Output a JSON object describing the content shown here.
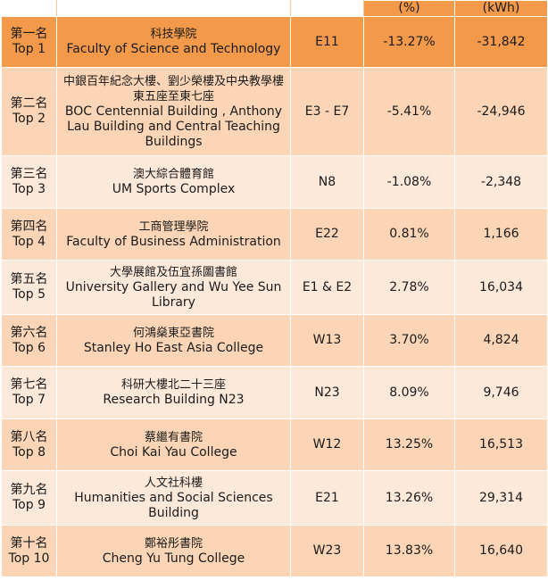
{
  "header": {
    "percent_unit": "(%)",
    "energy_unit": "(kWh)"
  },
  "rows": [
    {
      "rank_cn": "第一名",
      "rank_en": "Top 1",
      "name_cn": "科技學院",
      "name_en": "Faculty of Science and Technology",
      "code": "E11",
      "percent": "-13.27%",
      "kwh": "-31,842"
    },
    {
      "rank_cn": "第二名",
      "rank_en": "Top 2",
      "name_cn": "中銀百年紀念大樓、劉少榮樓及中央教學樓東五座至東七座",
      "name_en": "BOC Centennial Building , Anthony Lau Building and Central Teaching Buildings",
      "code": "E3 - E7",
      "percent": "-5.41%",
      "kwh": "-24,946"
    },
    {
      "rank_cn": "第三名",
      "rank_en": "Top 3",
      "name_cn": "澳大綜合體育館",
      "name_en": "UM Sports Complex",
      "code": "N8",
      "percent": "-1.08%",
      "kwh": "-2,348"
    },
    {
      "rank_cn": "第四名",
      "rank_en": "Top 4",
      "name_cn": "工商管理學院",
      "name_en": "Faculty of Business Administration",
      "code": "E22",
      "percent": "0.81%",
      "kwh": "1,166"
    },
    {
      "rank_cn": "第五名",
      "rank_en": "Top 5",
      "name_cn": "大學展館及伍宜孫圖書館",
      "name_en": "University Gallery and Wu Yee Sun Library",
      "code": "E1 & E2",
      "percent": "2.78%",
      "kwh": "16,034"
    },
    {
      "rank_cn": "第六名",
      "rank_en": "Top 6",
      "name_cn": "何鴻燊東亞書院",
      "name_en": "Stanley Ho East Asia College",
      "code": "W13",
      "percent": "3.70%",
      "kwh": "4,824"
    },
    {
      "rank_cn": "第七名",
      "rank_en": "Top 7",
      "name_cn": "科研大樓北二十三座",
      "name_en": "Research Building N23",
      "code": "N23",
      "percent": "8.09%",
      "kwh": "9,746"
    },
    {
      "rank_cn": "第八名",
      "rank_en": "Top 8",
      "name_cn": "蔡繼有書院",
      "name_en": "Choi Kai Yau College",
      "code": "W12",
      "percent": "13.25%",
      "kwh": "16,513"
    },
    {
      "rank_cn": "第九名",
      "rank_en": "Top 9",
      "name_cn": "人文社科樓",
      "name_en": "Humanities and Social Sciences Building",
      "code": "E21",
      "percent": "13.26%",
      "kwh": "29,314"
    },
    {
      "rank_cn": "第十名",
      "rank_en": "Top 10",
      "name_cn": "鄭裕彤書院",
      "name_en": "Cheng Yu Tung College",
      "code": "W23",
      "percent": "13.83%",
      "kwh": "16,640"
    }
  ]
}
